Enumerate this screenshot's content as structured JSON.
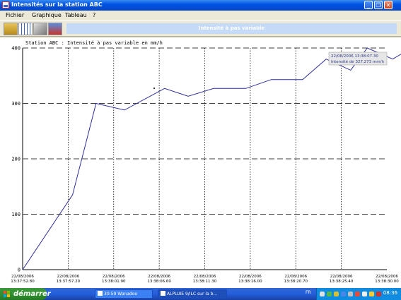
{
  "window": {
    "title": "Intensités sur la station ABC",
    "buttons": [
      "_",
      "❐",
      "✕"
    ]
  },
  "menu": [
    "Fichier",
    "Graphique",
    "Tableau",
    "?"
  ],
  "toolbar": {
    "icons": [
      "data-icon",
      "table-icon",
      "print-icon",
      "save-icon"
    ],
    "banner": "Intensité à pas variable"
  },
  "chart_data": {
    "type": "line",
    "title": "Station ABC : Intensité à pas variable en mm/h",
    "x_tick_labels": [
      [
        "22/08/2006",
        "13:37:52.80"
      ],
      [
        "22/08/2006",
        "13:37:57.20"
      ],
      [
        "22/08/2006",
        "13:38:01.90"
      ],
      [
        "22/08/2006",
        "13:38:06.60"
      ],
      [
        "22/08/2006",
        "13:38:11.30"
      ],
      [
        "22/08/2006",
        "13:38:16.00"
      ],
      [
        "22/08/2006",
        "13:38:20.70"
      ],
      [
        "22/08/2006",
        "13:38:25.40"
      ],
      [
        "22/08/2006",
        "13:38:30.00"
      ]
    ],
    "y_tick_labels": [
      "0",
      "100",
      "200",
      "300",
      "400"
    ],
    "ylim": [
      0,
      400
    ],
    "x_seconds_range": [
      52.8,
      90.0
    ],
    "points": [
      [
        52.8,
        0
      ],
      [
        57.9,
        135
      ],
      [
        60.3,
        300
      ],
      [
        63.2,
        288
      ],
      [
        67.3,
        327
      ],
      [
        69.7,
        313
      ],
      [
        72.3,
        327
      ],
      [
        75.6,
        327
      ],
      [
        78.2,
        343
      ],
      [
        81.4,
        343
      ],
      [
        83.8,
        380
      ],
      [
        86.3,
        360
      ],
      [
        88.0,
        400
      ],
      [
        90.6,
        380
      ],
      [
        92.5,
        400
      ],
      [
        96.5,
        400
      ]
    ],
    "tooltip": [
      "22/08/2006 13:38:07.30",
      "Intensité de 327.273 mm/h"
    ],
    "grid": "dashed horizontal, dotted vertical"
  },
  "taskbar": {
    "start": "démarrer",
    "tasks": [
      "30:59 Wanadoo",
      "ALPLUIE 9/ILC sur la b..."
    ],
    "lang": "FR",
    "clock": "08:36"
  }
}
